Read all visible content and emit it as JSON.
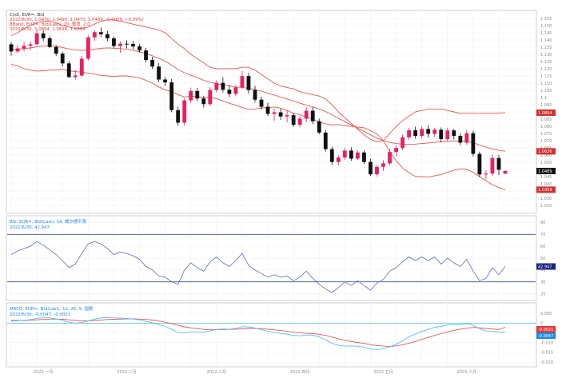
{
  "app": {
    "title": "",
    "top_right": ""
  },
  "colors": {
    "up": "#e91e63",
    "down": "#111111",
    "bollinger": "#ef5350",
    "rsi_line": "#5c6bc0",
    "rsi_level": "#3949ab",
    "macd": "#4fc3f7",
    "signal": "#ef5350",
    "grid": "#eeeeee",
    "frame": "#b0b0b0"
  },
  "price_panel": {
    "header_line1": "Cndl, EUR=, Bid",
    "header_line2": "2022/6/30, 1.0470, 1.0493, 1.0470, 1.0489, -0.0009, (-0.09%)",
    "header_line3": "BBand, EUR=, Bid(Last), 20, 重增, 2.0",
    "header_line4": "2022/6/30, 1.0894, 1.0626, 1.0359",
    "markers": [
      {
        "text": "1.0894",
        "value": 1.0894,
        "color": "#d32f2f"
      },
      {
        "text": "1.0626",
        "value": 1.0626,
        "color": "#d32f2f"
      },
      {
        "text": "1.0489",
        "value": 1.0489,
        "color": "#111111"
      },
      {
        "text": "1.0359",
        "value": 1.0359,
        "color": "#d32f2f"
      }
    ]
  },
  "rsi_panel": {
    "header_line1": "RSI, EUR=, Bid(Last), 14, 威尔德平滑",
    "header_line2": "2022/6/30, 42.947",
    "marker_text": "42.947",
    "levels": [
      70,
      30
    ]
  },
  "macd_panel": {
    "header_line1": "MACD, EUR=, Bid(Last), 12, 26, 9, 指数",
    "header_line2": "2022/6/30, -0.0047, -0.0021",
    "markers": [
      {
        "text": "-0.0021",
        "color": "#e53935"
      },
      {
        "text": "-0.0047",
        "color": "#1e88e5"
      }
    ]
  },
  "x_axis": {
    "labels": [
      "一月",
      "二月",
      "三月",
      "四月",
      "五月",
      "六月"
    ],
    "year_prefix": "2022"
  },
  "chart_data": {
    "type": "candlestick",
    "title": "",
    "y_price_range": [
      1.02,
      1.16
    ],
    "y_rsi_range": [
      15,
      85
    ],
    "y_macd_range": [
      -0.022,
      0.01
    ],
    "price_ticks": [
      "1.160",
      "1.155",
      "1.150",
      "1.145",
      "1.140",
      "1.135",
      "1.130",
      "1.125",
      "1.120",
      "1.115",
      "1.110",
      "1.105",
      "1.1",
      "1.095",
      "1.090",
      "1.085",
      "1.080",
      "1.075",
      "1.070",
      "1.065",
      "1.060",
      "1.055",
      "1.050",
      "1.045",
      "1.040",
      "1.035",
      "1.030",
      "1.025"
    ],
    "rsi_ticks": [
      "80",
      "70",
      "60",
      "50",
      "40",
      "30",
      "20"
    ],
    "macd_ticks": [
      "0.005",
      "0",
      "-0.005",
      "-0.010",
      "-0.015",
      "-0.020"
    ],
    "candles": [
      [
        1.137,
        1.1384,
        1.129,
        1.132
      ],
      [
        1.132,
        1.1365,
        1.1306,
        1.1341
      ],
      [
        1.1341,
        1.1389,
        1.1319,
        1.1359
      ],
      [
        1.1359,
        1.1392,
        1.1327,
        1.137
      ],
      [
        1.137,
        1.1472,
        1.1362,
        1.1446
      ],
      [
        1.1446,
        1.1468,
        1.1392,
        1.1412
      ],
      [
        1.1412,
        1.1425,
        1.1343,
        1.1351
      ],
      [
        1.1351,
        1.1364,
        1.129,
        1.1305
      ],
      [
        1.1305,
        1.1318,
        1.1216,
        1.1237
      ],
      [
        1.1237,
        1.1254,
        1.1137,
        1.1142
      ],
      [
        1.1142,
        1.1191,
        1.1125,
        1.1153
      ],
      [
        1.1153,
        1.129,
        1.1141,
        1.127
      ],
      [
        1.127,
        1.1432,
        1.1257,
        1.1418
      ],
      [
        1.1418,
        1.1467,
        1.1395,
        1.1454
      ],
      [
        1.1454,
        1.1488,
        1.1422,
        1.144
      ],
      [
        1.144,
        1.1463,
        1.1391,
        1.1411
      ],
      [
        1.1411,
        1.1425,
        1.1341,
        1.1358
      ],
      [
        1.1358,
        1.139,
        1.1311,
        1.1374
      ],
      [
        1.1374,
        1.1398,
        1.1341,
        1.1372
      ],
      [
        1.1372,
        1.1393,
        1.1334,
        1.1355
      ],
      [
        1.1355,
        1.1373,
        1.1313,
        1.1327
      ],
      [
        1.1327,
        1.1345,
        1.1243,
        1.1261
      ],
      [
        1.1261,
        1.1283,
        1.1199,
        1.1215
      ],
      [
        1.1215,
        1.1239,
        1.1107,
        1.1125
      ],
      [
        1.1125,
        1.1143,
        1.1081,
        1.1105
      ],
      [
        1.1105,
        1.1128,
        1.0898,
        1.0912
      ],
      [
        1.0912,
        1.0935,
        1.0805,
        1.0825
      ],
      [
        1.0825,
        1.0995,
        1.0805,
        1.098
      ],
      [
        1.098,
        1.1068,
        1.0961,
        1.1045
      ],
      [
        1.1045,
        1.1066,
        1.0975,
        1.0993
      ],
      [
        1.0993,
        1.1012,
        1.0931,
        1.0954
      ],
      [
        1.0954,
        1.1072,
        1.094,
        1.1052
      ],
      [
        1.1052,
        1.112,
        1.1035,
        1.1102
      ],
      [
        1.1102,
        1.1142,
        1.1035,
        1.1054
      ],
      [
        1.1054,
        1.1088,
        1.1002,
        1.1025
      ],
      [
        1.1025,
        1.1089,
        1.101,
        1.107
      ],
      [
        1.107,
        1.1185,
        1.1059,
        1.1149
      ],
      [
        1.1149,
        1.1171,
        1.1026,
        1.1052
      ],
      [
        1.1052,
        1.1082,
        1.0965,
        1.0985
      ],
      [
        1.0985,
        1.1006,
        1.0918,
        1.0936
      ],
      [
        1.0936,
        1.0964,
        1.0872,
        1.0886
      ],
      [
        1.0886,
        1.0923,
        1.0837,
        1.0897
      ],
      [
        1.0897,
        1.0923,
        1.0845,
        1.0868
      ],
      [
        1.0868,
        1.0912,
        1.0826,
        1.0877
      ],
      [
        1.0877,
        1.0893,
        1.0795,
        1.081
      ],
      [
        1.081,
        1.0871,
        1.0793,
        1.0853
      ],
      [
        1.0853,
        1.0934,
        1.0827,
        1.0908
      ],
      [
        1.0908,
        1.0934,
        1.0815,
        1.0835
      ],
      [
        1.0835,
        1.0853,
        1.0744,
        1.0756
      ],
      [
        1.0756,
        1.0772,
        1.0624,
        1.0641
      ],
      [
        1.0641,
        1.0658,
        1.0533,
        1.0552
      ],
      [
        1.0552,
        1.0599,
        1.0528,
        1.0583
      ],
      [
        1.0583,
        1.065,
        1.0567,
        1.0631
      ],
      [
        1.0631,
        1.0654,
        1.056,
        1.0575
      ],
      [
        1.0575,
        1.0633,
        1.0564,
        1.0618
      ],
      [
        1.0618,
        1.0634,
        1.0538,
        1.0552
      ],
      [
        1.0552,
        1.0574,
        1.0455,
        1.0466
      ],
      [
        1.0466,
        1.0531,
        1.0452,
        1.0518
      ],
      [
        1.0518,
        1.0564,
        1.0491,
        1.0542
      ],
      [
        1.0542,
        1.0641,
        1.053,
        1.0621
      ],
      [
        1.0621,
        1.0666,
        1.0589,
        1.0649
      ],
      [
        1.0649,
        1.0742,
        1.0634,
        1.0723
      ],
      [
        1.0723,
        1.0788,
        1.0707,
        1.0772
      ],
      [
        1.0772,
        1.0797,
        1.0714,
        1.0733
      ],
      [
        1.0733,
        1.0799,
        1.0718,
        1.0781
      ],
      [
        1.0781,
        1.0807,
        1.0721,
        1.0747
      ],
      [
        1.0747,
        1.079,
        1.0725,
        1.0776
      ],
      [
        1.0776,
        1.0792,
        1.0688,
        1.0711
      ],
      [
        1.0711,
        1.079,
        1.0694,
        1.0771
      ],
      [
        1.0771,
        1.0783,
        1.0707,
        1.0733
      ],
      [
        1.0733,
        1.0752,
        1.0669,
        1.0686
      ],
      [
        1.0686,
        1.0773,
        1.0672,
        1.0752
      ],
      [
        1.0752,
        1.0769,
        1.0591,
        1.0608
      ],
      [
        1.0608,
        1.0624,
        1.0446,
        1.0465
      ],
      [
        1.0465,
        1.0496,
        1.0429,
        1.0471
      ],
      [
        1.0471,
        1.0605,
        1.0455,
        1.0579
      ],
      [
        1.0579,
        1.0601,
        1.0461,
        1.0498
      ],
      [
        1.047,
        1.0493,
        1.047,
        1.0489
      ]
    ],
    "bollinger_upper": [
      1.143,
      1.145,
      1.148,
      1.15,
      1.152,
      1.153,
      1.153,
      1.152,
      1.15,
      1.149,
      1.148,
      1.148,
      1.149,
      1.151,
      1.153,
      1.154,
      1.154,
      1.153,
      1.152,
      1.151,
      1.15,
      1.149,
      1.148,
      1.147,
      1.145,
      1.141,
      1.137,
      1.134,
      1.13,
      1.127,
      1.124,
      1.121,
      1.12,
      1.12,
      1.12,
      1.12,
      1.121,
      1.121,
      1.119,
      1.116,
      1.113,
      1.11,
      1.108,
      1.107,
      1.106,
      1.104,
      1.103,
      1.102,
      1.101,
      1.099,
      1.095,
      1.09,
      1.086,
      1.082,
      1.078,
      1.074,
      1.071,
      1.069,
      1.07,
      1.075,
      1.08,
      1.084,
      1.087,
      1.09,
      1.091,
      1.092,
      1.092,
      1.092,
      1.091,
      1.09,
      1.089,
      1.089,
      1.089,
      1.089,
      1.089,
      1.089,
      1.0892,
      1.0894
    ],
    "bollinger_middle": [
      1.133,
      1.1335,
      1.134,
      1.1345,
      1.1352,
      1.1358,
      1.136,
      1.1355,
      1.1348,
      1.1338,
      1.133,
      1.1328,
      1.133,
      1.1336,
      1.1342,
      1.1345,
      1.1343,
      1.134,
      1.1335,
      1.1327,
      1.1318,
      1.1305,
      1.129,
      1.1272,
      1.1252,
      1.1225,
      1.1195,
      1.1172,
      1.1155,
      1.1138,
      1.112,
      1.1105,
      1.1096,
      1.1088,
      1.108,
      1.1073,
      1.107,
      1.1064,
      1.1055,
      1.1044,
      1.103,
      1.1017,
      1.1003,
      1.099,
      1.0975,
      1.096,
      1.0947,
      1.0935,
      1.092,
      1.0903,
      1.088,
      1.0856,
      1.0832,
      1.081,
      1.0787,
      1.0765,
      1.074,
      1.0718,
      1.07,
      1.0688,
      1.068,
      1.0675,
      1.0674,
      1.0676,
      1.068,
      1.0684,
      1.0688,
      1.0692,
      1.0695,
      1.0697,
      1.0697,
      1.0695,
      1.0685,
      1.067,
      1.0655,
      1.0642,
      1.0633,
      1.0626
    ],
    "bollinger_lower": [
      1.123,
      1.122,
      1.12,
      1.119,
      1.1184,
      1.1186,
      1.119,
      1.119,
      1.1196,
      1.1186,
      1.118,
      1.1176,
      1.117,
      1.1162,
      1.1154,
      1.115,
      1.1146,
      1.115,
      1.115,
      1.1144,
      1.1136,
      1.112,
      1.11,
      1.1074,
      1.1054,
      1.104,
      1.102,
      1.1004,
      1.101,
      1.1006,
      1.1,
      1.1,
      1.0992,
      1.0976,
      1.096,
      1.0946,
      1.093,
      1.0918,
      1.092,
      1.0928,
      1.093,
      1.0934,
      1.0926,
      1.091,
      1.089,
      1.088,
      1.0864,
      1.085,
      1.083,
      1.0816,
      1.081,
      1.0812,
      1.0804,
      1.08,
      1.0794,
      1.079,
      1.077,
      1.0746,
      1.07,
      1.0626,
      1.056,
      1.051,
      1.0478,
      1.0452,
      1.045,
      1.0448,
      1.0456,
      1.0464,
      1.048,
      1.0494,
      1.0504,
      1.05,
      1.048,
      1.045,
      1.042,
      1.0394,
      1.0374,
      1.0359
    ],
    "rsi": [
      53,
      56,
      58,
      60,
      64,
      61,
      57,
      53,
      48,
      42,
      45,
      54,
      62,
      64,
      62,
      58,
      53,
      55,
      54,
      52,
      49,
      43,
      40,
      35,
      34,
      30,
      28,
      40,
      46,
      42,
      39,
      47,
      51,
      46,
      43,
      48,
      54,
      44,
      40,
      37,
      34,
      36,
      34,
      35,
      31,
      34,
      39,
      33,
      28,
      24,
      21,
      25,
      30,
      27,
      31,
      27,
      23,
      29,
      32,
      39,
      42,
      47,
      51,
      48,
      51,
      48,
      51,
      45,
      50,
      46,
      43,
      49,
      39,
      31,
      33,
      42,
      36,
      43
    ],
    "rsi_levels": [
      70,
      30
    ],
    "macd": [
      0.001,
      0.0012,
      0.0015,
      0.0018,
      0.0025,
      0.0028,
      0.0027,
      0.0022,
      0.0015,
      0.0005,
      0.0,
      0.0003,
      0.0012,
      0.0021,
      0.0027,
      0.0029,
      0.0027,
      0.0026,
      0.0024,
      0.0021,
      0.0017,
      0.0009,
      0.0002,
      -0.0008,
      -0.0017,
      -0.0032,
      -0.0048,
      -0.005,
      -0.0045,
      -0.0045,
      -0.0047,
      -0.004,
      -0.0032,
      -0.003,
      -0.0031,
      -0.0027,
      -0.0018,
      -0.0019,
      -0.0025,
      -0.0033,
      -0.0042,
      -0.0047,
      -0.0053,
      -0.0056,
      -0.0063,
      -0.0065,
      -0.0061,
      -0.0062,
      -0.007,
      -0.0086,
      -0.0104,
      -0.0114,
      -0.0118,
      -0.0117,
      -0.0118,
      -0.0123,
      -0.0133,
      -0.0135,
      -0.0132,
      -0.0121,
      -0.0108,
      -0.009,
      -0.007,
      -0.0056,
      -0.0042,
      -0.0032,
      -0.0021,
      -0.0017,
      -0.0009,
      -0.0007,
      -0.0008,
      -0.0003,
      -0.0011,
      -0.0028,
      -0.004,
      -0.0041,
      -0.0045,
      -0.0047
    ],
    "macd_signal": [
      0.0014,
      0.0014,
      0.0014,
      0.0015,
      0.0017,
      0.0019,
      0.0021,
      0.0021,
      0.002,
      0.0017,
      0.0014,
      0.0012,
      0.0012,
      0.0014,
      0.0016,
      0.0019,
      0.002,
      0.0021,
      0.0022,
      0.0022,
      0.0021,
      0.0019,
      0.0016,
      0.0011,
      0.0005,
      -0.0002,
      -0.0011,
      -0.0019,
      -0.0024,
      -0.0028,
      -0.0032,
      -0.0034,
      -0.0033,
      -0.0033,
      -0.0032,
      -0.0031,
      -0.0029,
      -0.0027,
      -0.0027,
      -0.0028,
      -0.0031,
      -0.0034,
      -0.0038,
      -0.0042,
      -0.0046,
      -0.005,
      -0.0052,
      -0.0054,
      -0.0057,
      -0.0063,
      -0.0071,
      -0.008,
      -0.0088,
      -0.0094,
      -0.0099,
      -0.0104,
      -0.011,
      -0.0115,
      -0.0118,
      -0.0119,
      -0.0117,
      -0.0111,
      -0.0103,
      -0.0094,
      -0.0083,
      -0.0073,
      -0.0063,
      -0.0054,
      -0.0045,
      -0.0037,
      -0.0031,
      -0.0026,
      -0.0022,
      -0.0024,
      -0.0027,
      -0.003,
      -0.0033,
      -0.0021
    ]
  }
}
